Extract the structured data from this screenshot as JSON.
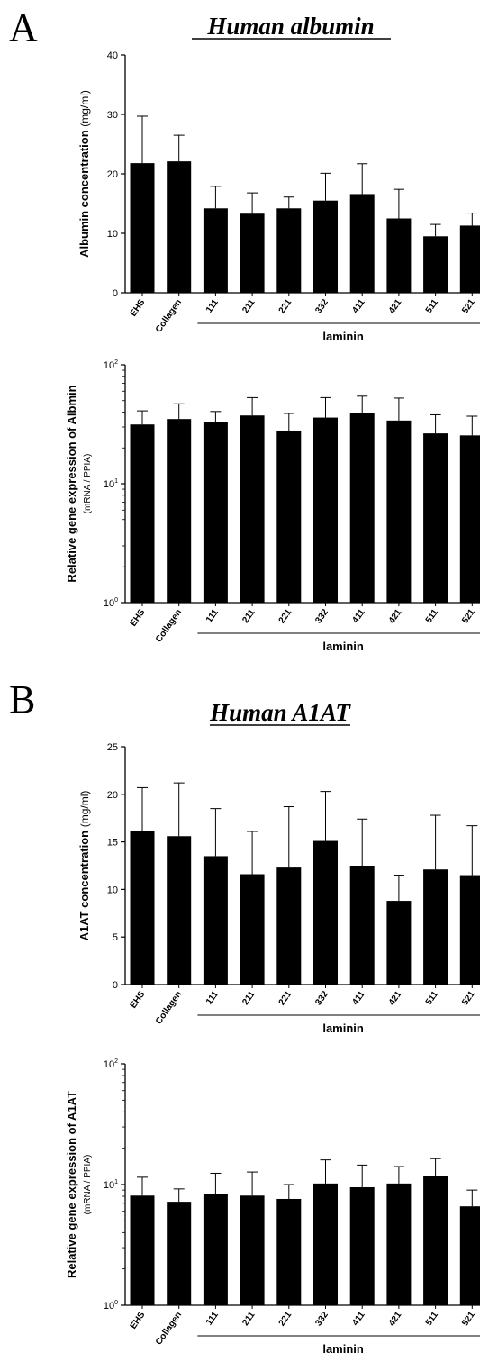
{
  "panels": [
    {
      "letter": "A",
      "title": "Human albumin"
    },
    {
      "letter": "B",
      "title": "Human A1AT"
    }
  ],
  "chart_data": [
    {
      "type": "bar",
      "ylabel": "Albumin concentration",
      "ylabel_unit": "(mg/ml)",
      "categories": [
        "EHS",
        "Collagen",
        "111",
        "211",
        "221",
        "332",
        "411",
        "421",
        "511",
        "521"
      ],
      "values": [
        21.8,
        22.1,
        14.2,
        13.3,
        14.2,
        15.5,
        16.6,
        12.5,
        9.5,
        11.3
      ],
      "errors": [
        7.9,
        4.4,
        3.7,
        3.5,
        1.9,
        4.6,
        5.1,
        4.9,
        2.0,
        2.1
      ],
      "ylim": [
        0,
        40
      ],
      "yticks": [
        0,
        10,
        20,
        30,
        40
      ],
      "scale": "linear",
      "group_label": "laminin",
      "color": "#000000"
    },
    {
      "type": "bar",
      "ylabel": "Relative gene expression of Albmin",
      "ylabel_sub": "(mRNA /  PPIA)",
      "categories": [
        "EHS",
        "Collagen",
        "111",
        "211",
        "221",
        "332",
        "411",
        "421",
        "511",
        "521"
      ],
      "values": [
        31.5,
        35.0,
        33.0,
        37.5,
        28.0,
        36.0,
        39.0,
        34.0,
        26.5,
        25.5
      ],
      "errors": [
        9.5,
        12.0,
        7.5,
        15.5,
        11.0,
        17.0,
        15.5,
        18.5,
        11.5,
        11.5
      ],
      "ylim": [
        1,
        100
      ],
      "yticks": [
        1,
        10,
        100
      ],
      "ytick_labels": [
        {
          "base": "10",
          "exp": "0"
        },
        {
          "base": "10",
          "exp": "1"
        },
        {
          "base": "10",
          "exp": "2"
        }
      ],
      "scale": "log",
      "group_label": "laminin",
      "color": "#000000"
    },
    {
      "type": "bar",
      "ylabel": "A1AT concentration",
      "ylabel_unit": "(mg/ml)",
      "categories": [
        "EHS",
        "Collagen",
        "111",
        "211",
        "221",
        "332",
        "411",
        "421",
        "511",
        "521"
      ],
      "values": [
        16.1,
        15.6,
        13.5,
        11.6,
        12.3,
        15.1,
        12.5,
        8.8,
        12.1,
        11.5
      ],
      "errors": [
        4.6,
        5.6,
        5.0,
        4.5,
        6.4,
        5.2,
        4.9,
        2.7,
        5.7,
        5.2
      ],
      "ylim": [
        0,
        25
      ],
      "yticks": [
        0,
        5,
        10,
        15,
        20,
        25
      ],
      "scale": "linear",
      "group_label": "laminin",
      "color": "#000000"
    },
    {
      "type": "bar",
      "ylabel": "Relative gene expression of A1AT",
      "ylabel_sub": "(mRNA /  PPIA)",
      "categories": [
        "EHS",
        "Collagen",
        "111",
        "211",
        "221",
        "332",
        "411",
        "421",
        "511",
        "521"
      ],
      "values": [
        8.1,
        7.2,
        8.4,
        8.1,
        7.6,
        10.2,
        9.5,
        10.2,
        11.7,
        6.6
      ],
      "errors": [
        3.4,
        2.0,
        4.0,
        4.6,
        2.4,
        5.8,
        5.0,
        3.9,
        4.7,
        2.4
      ],
      "ylim": [
        1,
        100
      ],
      "yticks": [
        1,
        10,
        100
      ],
      "ytick_labels": [
        {
          "base": "10",
          "exp": "0"
        },
        {
          "base": "10",
          "exp": "1"
        },
        {
          "base": "10",
          "exp": "2"
        }
      ],
      "scale": "log",
      "group_label": "laminin",
      "color": "#000000"
    }
  ]
}
